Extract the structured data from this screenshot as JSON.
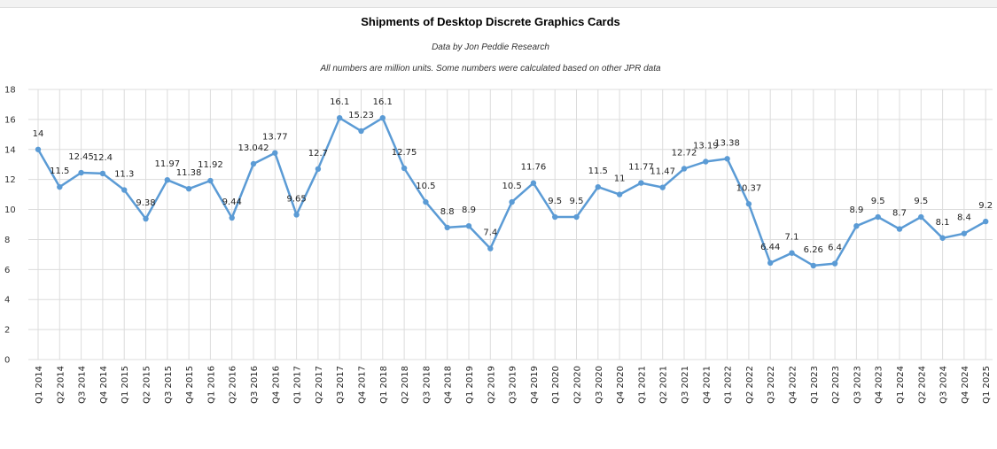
{
  "chart_data": {
    "type": "line",
    "title": "Shipments of Desktop Discrete Graphics Cards",
    "subtitles": [
      "Data by Jon Peddie Research",
      "All numbers are million units. Some numbers were calculated based on other JPR data"
    ],
    "xlabel": "",
    "ylabel": "",
    "ylim": [
      0,
      18
    ],
    "yticks": [
      0,
      2,
      4,
      6,
      8,
      10,
      12,
      14,
      16,
      18
    ],
    "grid": true,
    "legend": "none",
    "color": "#5b9bd5",
    "categories": [
      "Q1 2014",
      "Q2 2014",
      "Q3 2014",
      "Q4 2014",
      "Q1 2015",
      "Q2 2015",
      "Q3 2015",
      "Q4 2015",
      "Q1 2016",
      "Q2 2016",
      "Q3 2016",
      "Q4 2016",
      "Q1 2017",
      "Q2 2017",
      "Q3 2017",
      "Q4 2017",
      "Q1 2018",
      "Q2 2018",
      "Q3 2018",
      "Q4 2018",
      "Q1 2019",
      "Q2 2019",
      "Q3 2019",
      "Q4 2019",
      "Q1 2020",
      "Q2 2020",
      "Q3 2020",
      "Q4 2020",
      "Q1 2021",
      "Q2 2021",
      "Q3 2021",
      "Q4 2021",
      "Q1 2022",
      "Q2 2022",
      "Q3 2022",
      "Q4 2022",
      "Q1 2023",
      "Q2 2023",
      "Q3 2023",
      "Q4 2023",
      "Q1 2024",
      "Q2 2024",
      "Q3 2024",
      "Q4 2024",
      "Q1 2025"
    ],
    "values": [
      14,
      11.5,
      12.45,
      12.4,
      11.3,
      9.38,
      11.97,
      11.38,
      11.92,
      9.44,
      13.042,
      13.77,
      9.65,
      12.7,
      16.1,
      15.23,
      16.1,
      12.75,
      10.5,
      8.8,
      8.9,
      7.4,
      10.5,
      11.76,
      9.5,
      9.5,
      11.5,
      11,
      11.77,
      11.47,
      12.72,
      13.19,
      13.38,
      10.37,
      6.44,
      7.1,
      6.26,
      6.4,
      8.9,
      9.5,
      8.7,
      9.5,
      8.1,
      8.4,
      9.2
    ],
    "data_labels": [
      "14",
      "11.5",
      "12.45",
      "12.4",
      "11.3",
      "9.38",
      "11.97",
      "11.38",
      "11.92",
      "9.44",
      "13.042",
      "13.77",
      "9.65",
      "12.7",
      "16.1",
      "15.23",
      "16.1",
      "12.75",
      "10.5",
      "8.8",
      "8.9",
      "7.4",
      "10.5",
      "11.76",
      "9.5",
      "9.5",
      "11.5",
      "11",
      "11.77",
      "11.47",
      "12.72",
      "13.19",
      "13.38",
      "10.37",
      "6.44",
      "7.1",
      "6.26",
      "6.4",
      "8.9",
      "9.5",
      "8.7",
      "9.5",
      "8.1",
      "8.4",
      "9.2"
    ]
  }
}
